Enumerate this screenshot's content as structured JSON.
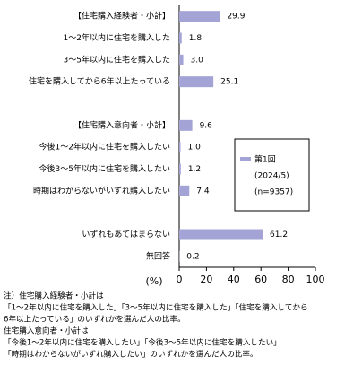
{
  "chart_data": {
    "type": "bar",
    "orientation": "horizontal",
    "categories": [
      "【住宅購入経験者・小計】",
      "1～2年以内に住宅を購入した",
      "3～5年以内に住宅を購入した",
      "住宅を購入してから6年以上たっている",
      null,
      "【住宅購入意向者・小計】",
      "今後1～2年以内に住宅を購入したい",
      "今後3～5年以内に住宅を購入したい",
      "時期はわからないがいずれ購入したい",
      null,
      "いずれもあてはまらない",
      "無回答"
    ],
    "series": [
      {
        "name": "第1回",
        "color": "#a3a3d6",
        "values": [
          29.9,
          1.8,
          3.0,
          25.1,
          null,
          9.6,
          1.0,
          1.2,
          7.4,
          null,
          61.2,
          0.2
        ],
        "value_labels": [
          "29.9",
          "1.8",
          "3.0",
          "25.1",
          null,
          "9.6",
          "1.0",
          "1.2",
          "7.4",
          null,
          "61.2",
          "0.2"
        ]
      }
    ],
    "legend_note": [
      "(2024/5)",
      "(n=9357)"
    ],
    "x_label": "(%)",
    "xlim": [
      0,
      100
    ],
    "xticks": [
      0,
      20,
      40,
      60,
      80,
      100
    ],
    "grid": false,
    "notes": [
      "注）住宅購入経験者・小計は",
      "「1～2年以内に住宅を購入した」「3～5年以内に住宅を購入した」「住宅を購入してから",
      "6年以上たっている」のいずれかを選んだ人の比率。",
      "住宅購入意向者・小計は",
      "「今後1～2年以内に住宅を購入したい」「今後3～5年以内に住宅を購入したい」",
      "「時期はわからないがいずれ購入したい」のいずれかを選んだ人の比率。"
    ]
  }
}
